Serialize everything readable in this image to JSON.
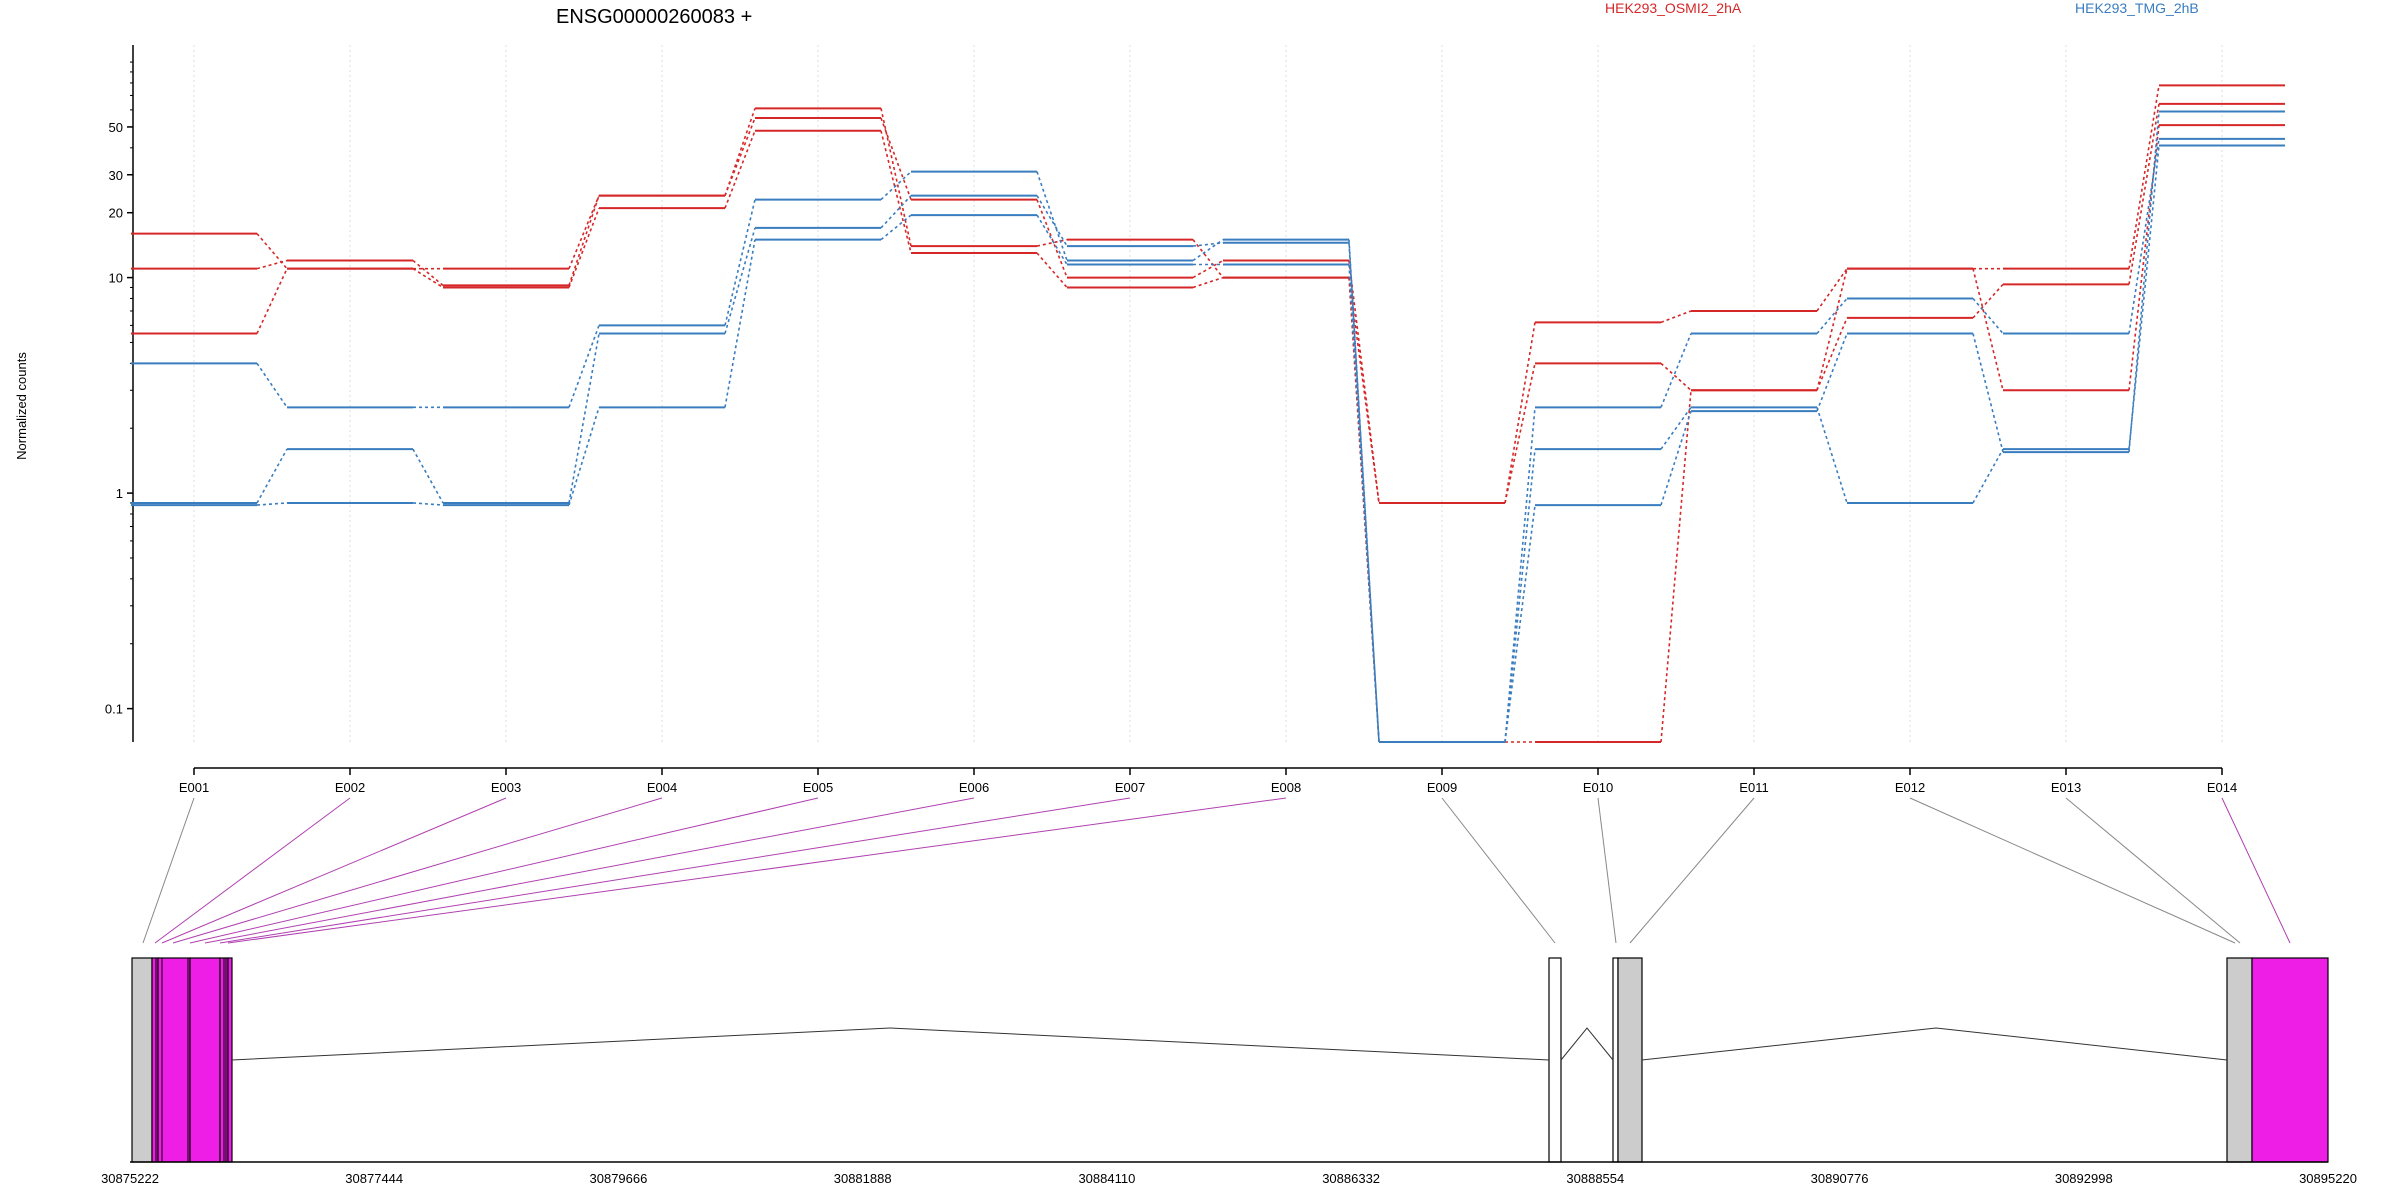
{
  "chart_data": {
    "type": "line",
    "title": "ENSG00000260083 +",
    "ylabel": "Normalized counts",
    "yscale": "log",
    "yticks": [
      "0.1",
      "1",
      "10",
      "20",
      "30",
      "50"
    ],
    "ylim": [
      0.07,
      120
    ],
    "categories": [
      "E001",
      "E002",
      "E003",
      "E004",
      "E005",
      "E006",
      "E007",
      "E008",
      "E009",
      "E010",
      "E011",
      "E012",
      "E013",
      "E014"
    ],
    "legend": [
      {
        "label": "HEK293_OSMI2_2hA",
        "color": "#d62728"
      },
      {
        "label": "HEK293_TMG_2hB",
        "color": "#3a7dbf"
      }
    ],
    "series": [
      {
        "group": "HEK293_OSMI2_2hA",
        "color": "#d62728",
        "values": [
          16,
          11,
          11,
          24,
          61,
          14,
          15,
          10,
          0.9,
          6.2,
          7,
          11,
          11,
          78
        ]
      },
      {
        "group": "HEK293_OSMI2_2hA",
        "color": "#d62728",
        "values": [
          11,
          12,
          9.2,
          24,
          55,
          23,
          10,
          12,
          0.9,
          4,
          3,
          6.5,
          9.3,
          64
        ]
      },
      {
        "group": "HEK293_OSMI2_2hA",
        "color": "#d62728",
        "values": [
          5.5,
          11,
          9,
          21,
          48,
          13,
          9,
          10,
          0.07,
          0.07,
          3,
          11,
          3,
          51
        ]
      },
      {
        "group": "HEK293_TMG_2hB",
        "color": "#3a7dbf",
        "values": [
          4,
          2.5,
          2.5,
          6,
          23,
          31,
          12,
          15,
          0.07,
          2.5,
          5.5,
          8,
          5.5,
          44
        ]
      },
      {
        "group": "HEK293_TMG_2hB",
        "color": "#3a7dbf",
        "values": [
          0.9,
          1.6,
          0.9,
          5.5,
          17,
          24,
          14,
          14.5,
          0.07,
          1.6,
          2.5,
          0.9,
          1.6,
          41
        ]
      },
      {
        "group": "HEK293_TMG_2hB",
        "color": "#3a7dbf",
        "values": [
          0.88,
          0.9,
          0.88,
          2.5,
          15,
          19.5,
          11.5,
          11.5,
          0.07,
          0.88,
          2.4,
          5.5,
          1.55,
          59
        ]
      }
    ],
    "gene_model": {
      "genomic_ticks": [
        "30875222",
        "30877444",
        "30879666",
        "30881888",
        "30884110",
        "30886332",
        "30888554",
        "30890776",
        "30892998",
        "30895220"
      ],
      "highlight_color": "#ee1ee6",
      "exon_color": "#cccccc"
    }
  }
}
